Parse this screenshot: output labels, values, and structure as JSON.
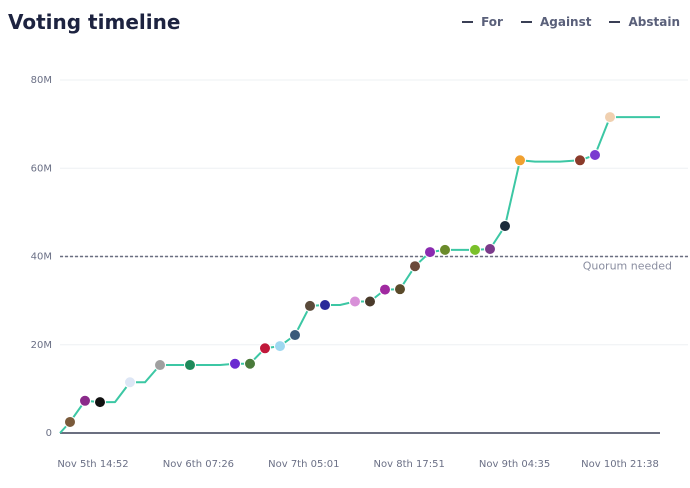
{
  "header": {
    "title": "Voting timeline",
    "legend": [
      {
        "label": "For",
        "icon": "dash-icon"
      },
      {
        "label": "Against",
        "icon": "dash-icon"
      },
      {
        "label": "Abstain",
        "icon": "dash-icon"
      }
    ]
  },
  "colors": {
    "line": "#3cc7a4",
    "quorum": "#6b6f80",
    "axis": "#6b6f80",
    "grid": "#eef0f3"
  },
  "chart_data": {
    "type": "line",
    "title": "Voting timeline",
    "step": true,
    "xlabel": "",
    "ylabel": "",
    "x_tick_labels": [
      "Nov 5th 14:52",
      "Nov 6th 07:26",
      "Nov 7th 05:01",
      "Nov 8th 17:51",
      "Nov 9th 04:35",
      "Nov 10th 21:38"
    ],
    "x_range": [
      0,
      6
    ],
    "y_ticks": [
      0,
      20,
      40,
      60,
      80
    ],
    "y_tick_labels": [
      "0",
      "20M",
      "40M",
      "60M",
      "80M"
    ],
    "ylim": [
      0,
      80
    ],
    "y_unit": "M",
    "grid": true,
    "legend_position": "top-right",
    "quorum": {
      "value": 40,
      "label": "Quorum needed"
    },
    "series": [
      {
        "name": "For",
        "points": [
          [
            0,
            0
          ],
          [
            0.1,
            2.5
          ],
          [
            0.25,
            7.3
          ],
          [
            0.4,
            7.0
          ],
          [
            0.55,
            7.0
          ],
          [
            0.7,
            11.5
          ],
          [
            0.85,
            11.5
          ],
          [
            1.0,
            15.4
          ],
          [
            1.1,
            15.4
          ],
          [
            1.3,
            15.4
          ],
          [
            1.6,
            15.4
          ],
          [
            1.75,
            15.7
          ],
          [
            1.9,
            15.7
          ],
          [
            2.05,
            19.2
          ],
          [
            2.2,
            19.7
          ],
          [
            2.35,
            22.2
          ],
          [
            2.5,
            28.8
          ],
          [
            2.65,
            29.0
          ],
          [
            2.8,
            29.0
          ],
          [
            2.95,
            29.8
          ],
          [
            3.1,
            29.8
          ],
          [
            3.25,
            32.5
          ],
          [
            3.4,
            32.6
          ],
          [
            3.55,
            37.8
          ],
          [
            3.7,
            41.0
          ],
          [
            3.85,
            41.5
          ],
          [
            4.0,
            41.5
          ],
          [
            4.15,
            41.5
          ],
          [
            4.3,
            41.7
          ],
          [
            4.45,
            46.9
          ],
          [
            4.6,
            61.8
          ],
          [
            4.75,
            61.5
          ],
          [
            5.0,
            61.5
          ],
          [
            5.2,
            61.8
          ],
          [
            5.35,
            63.0
          ],
          [
            5.5,
            71.6
          ],
          [
            5.7,
            71.6
          ],
          [
            6.0,
            71.6
          ]
        ]
      }
    ],
    "voter_markers": [
      {
        "x": 0.1,
        "y": 2.5,
        "color": "#7a5a3a"
      },
      {
        "x": 0.25,
        "y": 7.3,
        "color": "#8a2a8a"
      },
      {
        "x": 0.4,
        "y": 7.0,
        "color": "#111111"
      },
      {
        "x": 0.7,
        "y": 11.5,
        "color": "#dde6f5"
      },
      {
        "x": 1.0,
        "y": 15.4,
        "color": "#a0a0a0"
      },
      {
        "x": 1.3,
        "y": 15.4,
        "color": "#1e8a5a"
      },
      {
        "x": 1.75,
        "y": 15.7,
        "color": "#6a2ad0"
      },
      {
        "x": 1.9,
        "y": 15.7,
        "color": "#4a7a3a"
      },
      {
        "x": 2.05,
        "y": 19.2,
        "color": "#c0183a"
      },
      {
        "x": 2.2,
        "y": 19.7,
        "color": "#9ed8f0"
      },
      {
        "x": 2.35,
        "y": 22.2,
        "color": "#3a5a7a"
      },
      {
        "x": 2.5,
        "y": 28.8,
        "color": "#5a4a3a"
      },
      {
        "x": 2.65,
        "y": 29.0,
        "color": "#2a2a9a"
      },
      {
        "x": 2.95,
        "y": 29.8,
        "color": "#d890d8"
      },
      {
        "x": 3.1,
        "y": 29.8,
        "color": "#4a3a2a"
      },
      {
        "x": 3.25,
        "y": 32.5,
        "color": "#a02aa0"
      },
      {
        "x": 3.4,
        "y": 32.6,
        "color": "#5a4a2a"
      },
      {
        "x": 3.55,
        "y": 37.8,
        "color": "#6a4a3a"
      },
      {
        "x": 3.7,
        "y": 41.0,
        "color": "#8a2ab0"
      },
      {
        "x": 3.85,
        "y": 41.5,
        "color": "#6a8a2a"
      },
      {
        "x": 4.15,
        "y": 41.5,
        "color": "#7ac02a"
      },
      {
        "x": 4.3,
        "y": 41.7,
        "color": "#7a3a8a"
      },
      {
        "x": 4.45,
        "y": 46.9,
        "color": "#1a2a3a"
      },
      {
        "x": 4.6,
        "y": 61.8,
        "color": "#f0a030"
      },
      {
        "x": 5.2,
        "y": 61.8,
        "color": "#8a3a2a"
      },
      {
        "x": 5.35,
        "y": 63.0,
        "color": "#7a3ad0"
      },
      {
        "x": 5.5,
        "y": 71.6,
        "color": "#f0d0b0"
      }
    ]
  }
}
